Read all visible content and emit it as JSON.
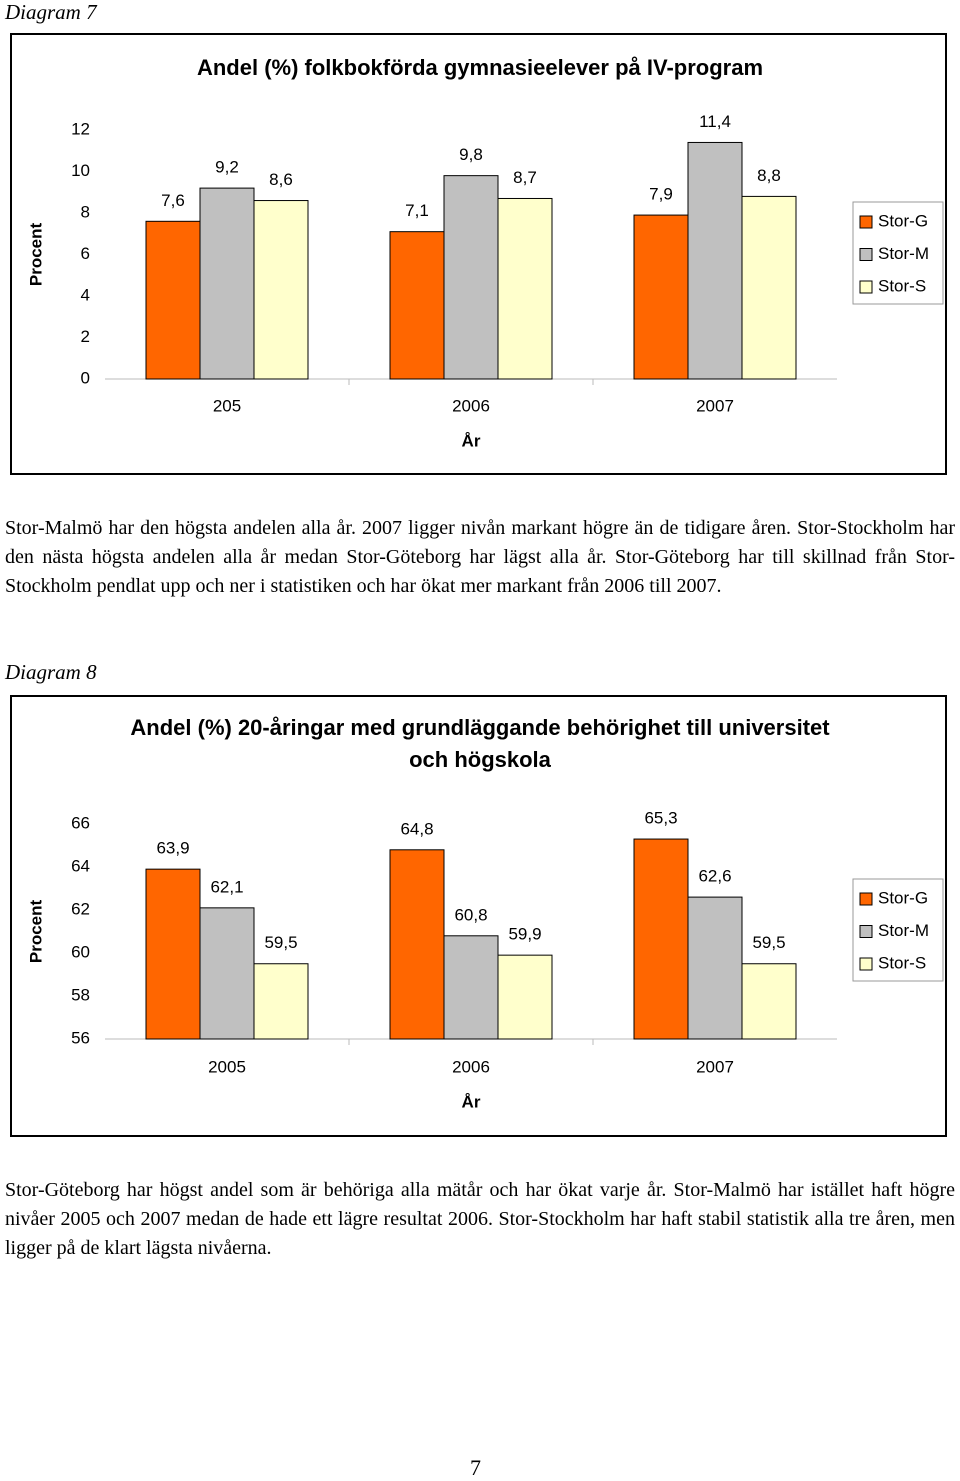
{
  "captions": [
    "Diagram 7",
    "Diagram 8"
  ],
  "paragraphs": [
    "Stor-Malmö har den högsta andelen alla år. 2007 ligger nivån markant högre än de tidigare åren. Stor-Stockholm har den nästa högsta andelen alla år medan Stor-Göteborg har lägst alla år. Stor-Göteborg har till skillnad från Stor-Stockholm pendlat upp och ner i statistiken och har ökat mer markant från 2006 till 2007.",
    "Stor-Göteborg har högst andel som är behöriga alla mätår och har ökat varje år. Stor-Malmö har istället haft högre nivåer 2005 och 2007 medan de hade ett lägre resultat 2006. Stor-Stockholm har haft stabil statistik alla tre åren, men ligger på de klart lägsta nivåerna."
  ],
  "page_number": "7",
  "chart_data": [
    {
      "type": "bar",
      "title": "Andel (%) folkbokförda gymnasieelever på IV-program",
      "categories": [
        "205",
        "2006",
        "2007"
      ],
      "series": [
        {
          "name": "Stor-G",
          "color": "#ff6600",
          "values": [
            7.6,
            7.1,
            7.9
          ],
          "value_labels": [
            "7,6",
            "7,1",
            "7,9"
          ]
        },
        {
          "name": "Stor-M",
          "color": "#c0c0c0",
          "values": [
            9.2,
            9.8,
            11.4
          ],
          "value_labels": [
            "9,2",
            "9,8",
            "11,4"
          ]
        },
        {
          "name": "Stor-S",
          "color": "#ffffcc",
          "values": [
            8.6,
            8.7,
            8.8
          ],
          "value_labels": [
            "8,6",
            "8,7",
            "8,8"
          ]
        }
      ],
      "ylim": [
        0,
        12
      ],
      "yticks": [
        0,
        2,
        4,
        6,
        8,
        10,
        12
      ],
      "y_label": "Procent",
      "x_label": "År",
      "legend": "right",
      "grid": false
    },
    {
      "type": "bar",
      "title": "Andel (%) 20-åringar med grundläggande behörighet till universitet och högskola",
      "categories": [
        "2005",
        "2006",
        "2007"
      ],
      "series": [
        {
          "name": "Stor-G",
          "color": "#ff6600",
          "values": [
            63.9,
            64.8,
            65.3
          ],
          "value_labels": [
            "63,9",
            "64,8",
            "65,3"
          ]
        },
        {
          "name": "Stor-M",
          "color": "#c0c0c0",
          "values": [
            62.1,
            60.8,
            62.6
          ],
          "value_labels": [
            "62,1",
            "60,8",
            "62,6"
          ]
        },
        {
          "name": "Stor-S",
          "color": "#ffffcc",
          "values": [
            59.5,
            59.9,
            59.5
          ],
          "value_labels": [
            "59,5",
            "59,9",
            "59,5"
          ]
        }
      ],
      "ylim": [
        56,
        66
      ],
      "yticks": [
        56,
        58,
        60,
        62,
        64,
        66
      ],
      "y_label": "Procent",
      "x_label": "År",
      "legend": "right",
      "grid": false
    }
  ]
}
